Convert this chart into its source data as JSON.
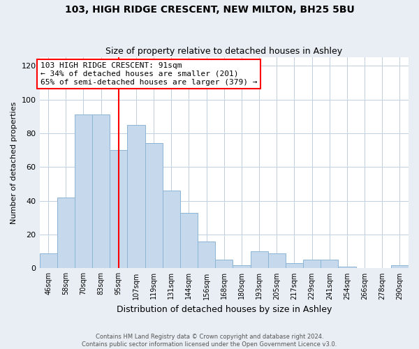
{
  "title": "103, HIGH RIDGE CRESCENT, NEW MILTON, BH25 5BU",
  "subtitle": "Size of property relative to detached houses in Ashley",
  "xlabel": "Distribution of detached houses by size in Ashley",
  "ylabel": "Number of detached properties",
  "bar_labels": [
    "46sqm",
    "58sqm",
    "70sqm",
    "83sqm",
    "95sqm",
    "107sqm",
    "119sqm",
    "131sqm",
    "144sqm",
    "156sqm",
    "168sqm",
    "180sqm",
    "193sqm",
    "205sqm",
    "217sqm",
    "229sqm",
    "241sqm",
    "254sqm",
    "266sqm",
    "278sqm",
    "290sqm"
  ],
  "bar_values": [
    9,
    42,
    91,
    91,
    70,
    85,
    74,
    46,
    33,
    16,
    5,
    2,
    10,
    9,
    3,
    5,
    5,
    1,
    0,
    0,
    2
  ],
  "bar_color": "#c5d8ec",
  "bar_edgecolor": "#8cb4d5",
  "vline_color": "red",
  "vline_x_index": 4,
  "annotation_text": "103 HIGH RIDGE CRESCENT: 91sqm\n← 34% of detached houses are smaller (201)\n65% of semi-detached houses are larger (379) →",
  "annotation_box_color": "white",
  "annotation_box_edgecolor": "red",
  "ylim": [
    0,
    125
  ],
  "yticks": [
    0,
    20,
    40,
    60,
    80,
    100,
    120
  ],
  "footer_line1": "Contains HM Land Registry data © Crown copyright and database right 2024.",
  "footer_line2": "Contains public sector information licensed under the Open Government Licence v3.0.",
  "background_color": "#e8eef4",
  "plot_background_color": "white",
  "grid_color": "#c0cedd"
}
